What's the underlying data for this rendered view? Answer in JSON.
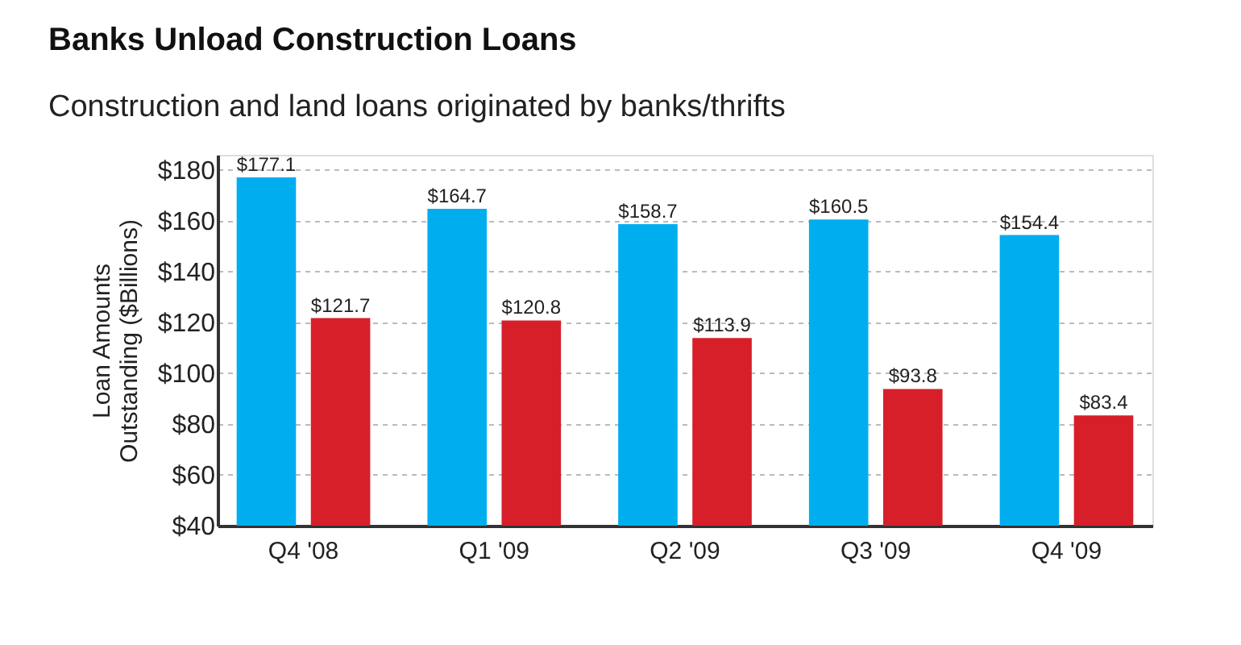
{
  "chart_data": {
    "type": "bar",
    "title": "Banks Unload Construction Loans",
    "subtitle": "Construction and land loans originated by banks/thrifts",
    "ylabel": "Loan Amounts\nOutstanding ($Billions)",
    "categories": [
      "Q4 '08",
      "Q1 '09",
      "Q2 '09",
      "Q3 '09",
      "Q4 '09"
    ],
    "series": [
      {
        "color": "#00aeef",
        "values": [
          177.1,
          164.7,
          158.7,
          160.5,
          154.4
        ],
        "value_labels": [
          "$177.1",
          "$164.7",
          "$158.7",
          "$160.5",
          "$154.4"
        ]
      },
      {
        "color": "#d71f2a",
        "values": [
          121.7,
          120.8,
          113.9,
          93.8,
          83.4
        ],
        "value_labels": [
          "$121.7",
          "$120.8",
          "$113.9",
          "$93.8",
          "$83.4"
        ]
      }
    ],
    "ylim": [
      40,
      186
    ],
    "yticks": [
      {
        "value": 40,
        "label": "$40"
      },
      {
        "value": 60,
        "label": "$60"
      },
      {
        "value": 80,
        "label": "$80"
      },
      {
        "value": 100,
        "label": "$100"
      },
      {
        "value": 120,
        "label": "$120"
      },
      {
        "value": 140,
        "label": "$140"
      },
      {
        "value": 160,
        "label": "$160"
      },
      {
        "value": 180,
        "label": "$180"
      }
    ],
    "grid": "y"
  }
}
